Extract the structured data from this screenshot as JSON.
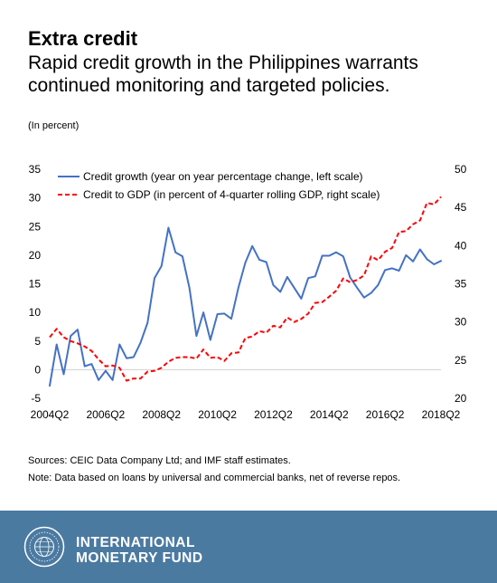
{
  "header": {
    "title": "Extra credit",
    "subtitle": "Rapid credit growth in the Philippines warrants continued monitoring and targeted policies.",
    "unit_note": "(In percent)"
  },
  "notes": {
    "sources": "Sources: CEIC Data Company Ltd; and IMF staff estimates.",
    "note": "Note: Data based on loans by universal and commercial banks, net of reverse repos."
  },
  "footer": {
    "org_line1": "INTERNATIONAL",
    "org_line2": "MONETARY FUND",
    "background_color": "#4b7aa1",
    "logo_icon": "imf-seal-icon"
  },
  "chart_data": {
    "type": "line",
    "x_start": "2004Q2",
    "x_tick_labels": [
      "2004Q2",
      "2006Q2",
      "2008Q2",
      "2010Q2",
      "2012Q2",
      "2014Q2",
      "2016Q2",
      "2018Q2"
    ],
    "left_axis": {
      "ylim": [
        -5,
        35
      ],
      "ticks": [
        -5,
        0,
        5,
        10,
        15,
        20,
        25,
        30,
        35
      ]
    },
    "right_axis": {
      "ylim": [
        20,
        50
      ],
      "ticks": [
        20,
        25,
        30,
        35,
        40,
        45,
        50
      ]
    },
    "grid": false,
    "legend_position": "top-left",
    "series": [
      {
        "name": "Credit growth (year on year percentage change, left scale)",
        "axis": "left",
        "color": "#4472c4",
        "style": "solid",
        "values": [
          -2.8,
          4.4,
          -0.8,
          5.9,
          7.0,
          0.6,
          1.0,
          -1.8,
          -0.2,
          -1.8,
          4.4,
          2.0,
          2.2,
          4.7,
          8.2,
          16.0,
          18.1,
          24.8,
          20.5,
          19.8,
          14.3,
          5.9,
          10.0,
          5.2,
          9.7,
          9.8,
          8.9,
          14.3,
          18.7,
          21.6,
          19.2,
          18.8,
          14.8,
          13.6,
          16.2,
          14.3,
          12.4,
          16.0,
          16.3,
          19.9,
          19.9,
          20.5,
          19.8,
          16.1,
          14.3,
          12.6,
          13.4,
          14.8,
          17.4,
          17.7,
          17.3,
          20.0,
          18.9,
          21.0,
          19.3,
          18.4,
          19.0
        ]
      },
      {
        "name": "Credit to GDP (in percent of 4-quarter rolling GDP, right scale)",
        "axis": "right",
        "color": "#ff0000",
        "style": "dashed",
        "values": [
          28.0,
          29.1,
          28.0,
          27.5,
          27.2,
          26.8,
          26.2,
          25.1,
          24.2,
          24.3,
          24.0,
          22.3,
          22.6,
          22.6,
          23.5,
          23.6,
          24.0,
          24.8,
          25.3,
          25.4,
          25.4,
          25.2,
          26.4,
          25.3,
          25.4,
          24.9,
          25.9,
          26.0,
          27.9,
          28.1,
          28.8,
          28.6,
          29.5,
          29.3,
          30.6,
          30.0,
          30.4,
          31.1,
          32.5,
          32.6,
          33.3,
          34.1,
          35.7,
          35.2,
          35.5,
          36.1,
          38.6,
          38.1,
          39.2,
          39.7,
          41.8,
          41.9,
          42.8,
          43.3,
          45.6,
          45.4,
          46.4
        ]
      }
    ]
  }
}
